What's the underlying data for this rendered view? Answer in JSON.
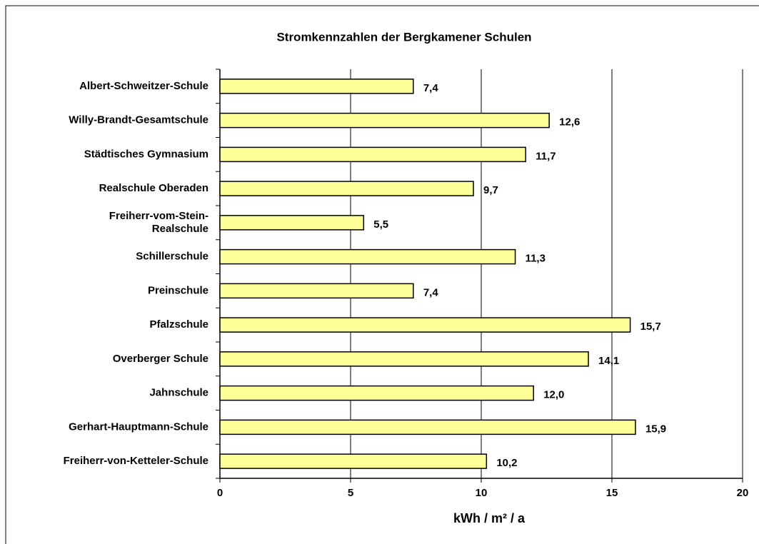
{
  "chart_data": {
    "type": "bar",
    "orientation": "horizontal",
    "title": "Stromkennzahlen der Bergkamener Schulen",
    "xlabel": "kWh / m² / a",
    "categories": [
      "Albert-Schweitzer-Schule",
      "Willy-Brandt-Gesamtschule",
      "Städtisches Gymnasium",
      "Realschule Oberaden",
      "Freiherr-vom-Stein-\nRealschule",
      "Schillerschule",
      "Preinschule",
      "Pfalzschule",
      "Overberger Schule",
      "Jahnschule",
      "Gerhart-Hauptmann-Schule",
      "Freiherr-von-Ketteler-Schule"
    ],
    "values": [
      7.4,
      12.6,
      11.7,
      9.7,
      5.5,
      11.3,
      7.4,
      15.7,
      14.1,
      12.0,
      15.9,
      10.2
    ],
    "value_labels": [
      "7,4",
      "12,6",
      "11,7",
      "9,7",
      "5,5",
      "11,3",
      "7,4",
      "15,7",
      "14,1",
      "12,0",
      "15,9",
      "10,2"
    ],
    "color": "#ffff99",
    "xlim": [
      0,
      20
    ],
    "xticks": [
      0,
      5,
      10,
      15,
      20
    ],
    "grid": true
  }
}
